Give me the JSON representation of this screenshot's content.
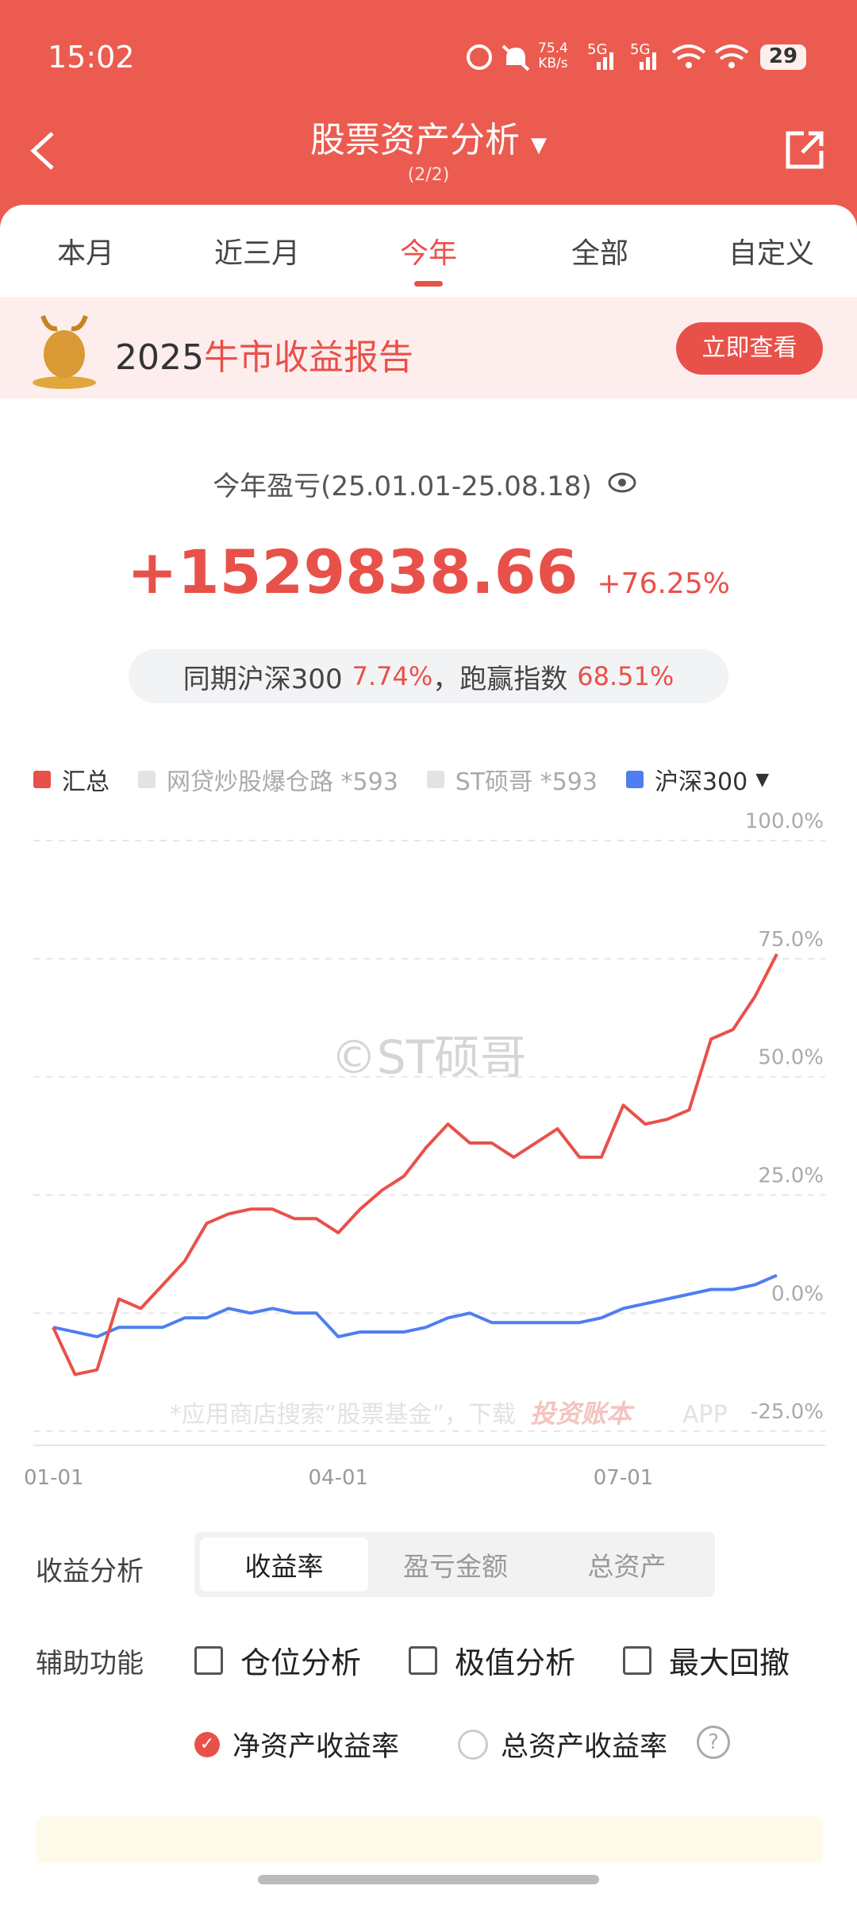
{
  "status_bar": {
    "time": "15:02",
    "net_speed": "75.4",
    "net_unit": "KB/s",
    "signal_1": "5G",
    "signal_2": "5G",
    "battery": "29"
  },
  "header": {
    "title": "股票资产分析",
    "page": "(2/2)"
  },
  "tabs": [
    "本月",
    "近三月",
    "今年",
    "全部",
    "自定义"
  ],
  "active_tab": 2,
  "banner": {
    "year": "2025",
    "title": "牛市收益报告",
    "button": "立即查看"
  },
  "summary": {
    "period": "今年盈亏(25.01.01-25.08.18)",
    "amount": "+1529838.66",
    "rate": "+76.25%",
    "compare_label": "同期沪深300",
    "index_rate": "7.74%",
    "beat_label": "，跑赢指数",
    "beat_rate": "68.51%"
  },
  "chart_data": {
    "type": "line",
    "categories": [
      "01-01",
      null,
      null,
      null,
      null,
      null,
      null,
      null,
      null,
      null,
      null,
      null,
      null,
      "04-01",
      null,
      null,
      null,
      null,
      null,
      null,
      null,
      null,
      null,
      null,
      null,
      null,
      "07-01",
      null,
      null,
      null,
      null,
      null,
      null,
      null
    ],
    "series": [
      {
        "name": "汇总",
        "color": "#e8514a",
        "visible": true,
        "values": [
          -3,
          -13,
          -12,
          3,
          1,
          6,
          11,
          19,
          21,
          22,
          22,
          20,
          20,
          17,
          22,
          26,
          29,
          35,
          40,
          36,
          36,
          33,
          36,
          39,
          33,
          33,
          44,
          40,
          41,
          43,
          58,
          60,
          67,
          76
        ]
      },
      {
        "name": "网贷炒股爆仓路 *593",
        "color": "#e3e3e3",
        "visible": false
      },
      {
        "name": "ST硕哥 *593",
        "color": "#e3e3e3",
        "visible": false
      },
      {
        "name": "沪深300",
        "color": "#4e7ef0",
        "visible": true,
        "values": [
          -3,
          -4,
          -5,
          -3,
          -3,
          -3,
          -1,
          -1,
          1,
          0,
          1,
          0,
          0,
          -5,
          -4,
          -4,
          -4,
          -3,
          -1,
          0,
          -2,
          -2,
          -2,
          -2,
          -2,
          -1,
          1,
          2,
          3,
          4,
          5,
          5,
          6,
          8
        ]
      }
    ],
    "ylim": [
      -28,
      100
    ],
    "yticks": [
      {
        "value": 100,
        "label": "100.0%"
      },
      {
        "value": 75,
        "label": "75.0%"
      },
      {
        "value": 50,
        "label": "50.0%"
      },
      {
        "value": 25,
        "label": "25.0%"
      },
      {
        "value": 0,
        "label": "0.0%"
      },
      {
        "value": -25,
        "label": "-25.0%"
      }
    ],
    "grid": true,
    "watermark": "©ST硕哥",
    "footer_note": "*应用商店搜索“股票基金”，下载",
    "app_name": "投资账本",
    "app_suffix": "APP"
  },
  "controls": {
    "analysis_label": "收益分析",
    "analysis_options": [
      "收益率",
      "盈亏金额",
      "总资产"
    ],
    "active_option": 0,
    "aux_label": "辅助功能",
    "aux_options": [
      "仓位分析",
      "极值分析",
      "最大回撤"
    ],
    "rate_options": [
      "净资产收益率",
      "总资产收益率"
    ],
    "active_rate": 0,
    "help": "?"
  }
}
